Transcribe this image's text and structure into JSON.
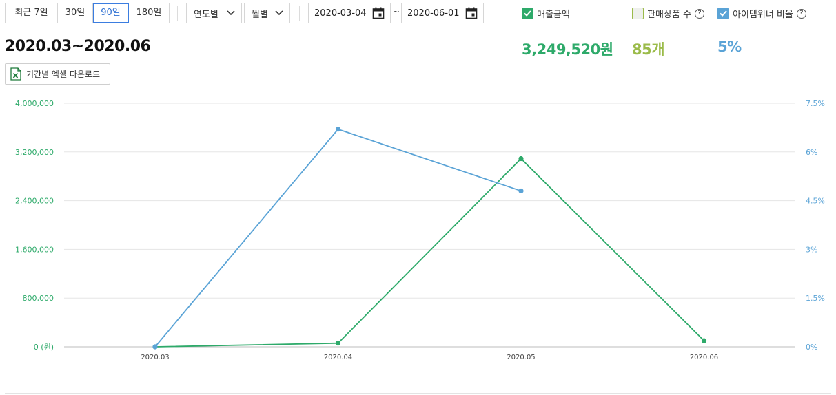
{
  "toolbar": {
    "period_buttons": [
      {
        "label": "최근 7일",
        "active": false
      },
      {
        "label": "30일",
        "active": false
      },
      {
        "label": "90일",
        "active": true
      },
      {
        "label": "180일",
        "active": false
      }
    ],
    "group_by_year": "연도별",
    "group_by_month": "월별",
    "start_date": "2020-03-04",
    "date_separator": "~",
    "end_date": "2020-06-01",
    "checkboxes": [
      {
        "label": "매출금액",
        "checked": true,
        "color": "#2eaa6a",
        "help": false
      },
      {
        "label": "판매상품 수",
        "checked": false,
        "color": "#9bbb4a",
        "help": true
      },
      {
        "label": "아이템위너 비율",
        "checked": true,
        "color": "#5aa3d6",
        "help": true
      }
    ],
    "help_glyph": "?"
  },
  "summary": {
    "period": "2020.03~2020.06",
    "sales_amount": "3,249,520원",
    "products_sold": "85개",
    "itemwinner_ratio": "5%"
  },
  "excel_button": {
    "label": "기간별 엑셀 다운로드",
    "icon": "excel-icon"
  },
  "colors": {
    "sales": "#2eaa6a",
    "products": "#9bbb4a",
    "ratio": "#5aa3d6",
    "active": "#2d6fd2"
  },
  "chart_data": {
    "type": "line",
    "categories": [
      "2020.03",
      "2020.04",
      "2020.05",
      "2020.06"
    ],
    "y_left": {
      "ticks": [
        "0 (원)",
        "800,000",
        "1,600,000",
        "2,400,000",
        "3,200,000",
        "4,000,000"
      ],
      "range": [
        0,
        4000000
      ]
    },
    "y_right": {
      "ticks": [
        "0%",
        "1.5%",
        "3%",
        "4.5%",
        "6%",
        "7.5%"
      ],
      "range": [
        0,
        7.5
      ]
    },
    "series": [
      {
        "name": "매출금액",
        "axis": "left",
        "color": "#2eaa6a",
        "values": [
          0,
          60000,
          3090000,
          100000
        ]
      },
      {
        "name": "아이템위너 비율",
        "axis": "right",
        "color": "#5aa3d6",
        "values": [
          0,
          6.7,
          4.8,
          null
        ]
      }
    ],
    "grid": true
  }
}
